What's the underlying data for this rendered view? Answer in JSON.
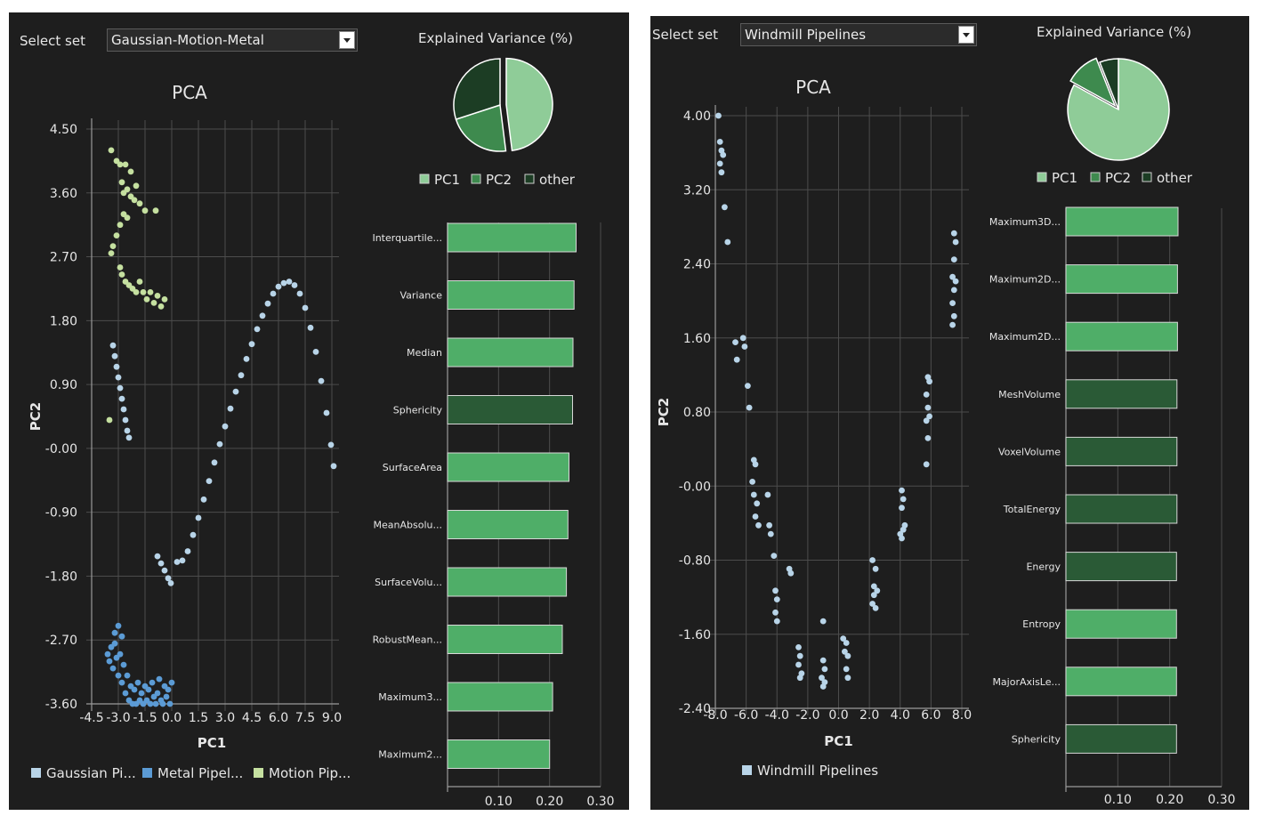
{
  "panels": [
    {
      "select_label": "Select set",
      "select_value": "Gaussian-Motion-Metal"
    },
    {
      "select_label": "Select set",
      "select_value": "Windmill Pipelines"
    }
  ],
  "chart_data": [
    {
      "type": "scatter",
      "title": "PCA",
      "xlabel": "PC1",
      "ylabel": "PC2",
      "xlim": [
        -4.5,
        9.0
      ],
      "ylim": [
        -3.6,
        4.5
      ],
      "xticks": [
        "-4.5",
        "-3.0",
        "-1.5",
        "0.0",
        "1.5",
        "3.0",
        "4.5",
        "6.0",
        "7.5",
        "9.0"
      ],
      "yticks": [
        "4.50",
        "3.60",
        "2.70",
        "1.80",
        "0.90",
        "-0.00",
        "-0.90",
        "-1.80",
        "-2.70",
        "-3.60"
      ],
      "legend": "bottom",
      "series": [
        {
          "name": "Gaussian Pi...",
          "color": "#b8d4e8",
          "points": [
            [
              -3.3,
              1.45
            ],
            [
              -3.2,
              1.3
            ],
            [
              -3.1,
              1.15
            ],
            [
              -3.0,
              1.0
            ],
            [
              -2.9,
              0.85
            ],
            [
              -2.8,
              0.7
            ],
            [
              -2.7,
              0.55
            ],
            [
              -2.6,
              0.4
            ],
            [
              -2.5,
              0.25
            ],
            [
              -2.4,
              0.15
            ],
            [
              -0.8,
              -1.52
            ],
            [
              -0.6,
              -1.62
            ],
            [
              -0.4,
              -1.72
            ],
            [
              -0.2,
              -1.83
            ],
            [
              -0.05,
              -1.9
            ],
            [
              0.3,
              -1.6
            ],
            [
              0.6,
              -1.58
            ],
            [
              0.9,
              -1.45
            ],
            [
              1.2,
              -1.22
            ],
            [
              1.5,
              -0.98
            ],
            [
              1.8,
              -0.72
            ],
            [
              2.1,
              -0.46
            ],
            [
              2.4,
              -0.2
            ],
            [
              2.7,
              0.06
            ],
            [
              3.0,
              0.31
            ],
            [
              3.3,
              0.56
            ],
            [
              3.6,
              0.8
            ],
            [
              3.9,
              1.03
            ],
            [
              4.2,
              1.26
            ],
            [
              4.5,
              1.47
            ],
            [
              4.8,
              1.68
            ],
            [
              5.1,
              1.87
            ],
            [
              5.4,
              2.04
            ],
            [
              5.7,
              2.18
            ],
            [
              6.0,
              2.28
            ],
            [
              6.3,
              2.33
            ],
            [
              6.6,
              2.35
            ],
            [
              6.9,
              2.3
            ],
            [
              7.2,
              2.18
            ],
            [
              7.5,
              1.98
            ],
            [
              7.8,
              1.7
            ],
            [
              8.1,
              1.36
            ],
            [
              8.4,
              0.95
            ],
            [
              8.7,
              0.5
            ],
            [
              8.95,
              0.05
            ],
            [
              9.1,
              -0.25
            ]
          ]
        },
        {
          "name": "Metal Pipel...",
          "color": "#5b9bd5",
          "points": [
            [
              -3.6,
              -2.9
            ],
            [
              -3.5,
              -3.0
            ],
            [
              -3.4,
              -2.8
            ],
            [
              -3.3,
              -3.1
            ],
            [
              -3.2,
              -2.75
            ],
            [
              -3.1,
              -2.95
            ],
            [
              -3.0,
              -3.2
            ],
            [
              -2.9,
              -2.9
            ],
            [
              -2.8,
              -3.3
            ],
            [
              -2.7,
              -3.05
            ],
            [
              -2.6,
              -3.45
            ],
            [
              -2.5,
              -3.2
            ],
            [
              -2.4,
              -3.55
            ],
            [
              -2.3,
              -3.35
            ],
            [
              -2.2,
              -3.6
            ],
            [
              -2.1,
              -3.4
            ],
            [
              -2.0,
              -3.6
            ],
            [
              -1.9,
              -3.3
            ],
            [
              -1.8,
              -3.55
            ],
            [
              -1.7,
              -3.45
            ],
            [
              -1.6,
              -3.6
            ],
            [
              -1.5,
              -3.35
            ],
            [
              -1.4,
              -3.55
            ],
            [
              -1.3,
              -3.4
            ],
            [
              -1.2,
              -3.6
            ],
            [
              -1.1,
              -3.3
            ],
            [
              -1.0,
              -3.5
            ],
            [
              -0.9,
              -3.6
            ],
            [
              -0.8,
              -3.45
            ],
            [
              -0.7,
              -3.25
            ],
            [
              -0.6,
              -3.55
            ],
            [
              -0.5,
              -3.6
            ],
            [
              -0.4,
              -3.35
            ],
            [
              -0.3,
              -3.5
            ],
            [
              -0.2,
              -3.4
            ],
            [
              -0.1,
              -3.6
            ],
            [
              0.0,
              -3.3
            ],
            [
              -3.0,
              -2.5
            ],
            [
              -2.8,
              -2.65
            ],
            [
              -3.2,
              -2.6
            ]
          ]
        },
        {
          "name": "Motion Pip...",
          "color": "#c5e0a0",
          "points": [
            [
              -3.4,
              4.2
            ],
            [
              -3.1,
              4.05
            ],
            [
              -2.9,
              4.0
            ],
            [
              -2.6,
              4.0
            ],
            [
              -2.3,
              3.9
            ],
            [
              -2.0,
              3.7
            ],
            [
              -2.8,
              3.75
            ],
            [
              -2.7,
              3.6
            ],
            [
              -2.5,
              3.65
            ],
            [
              -2.3,
              3.55
            ],
            [
              -2.1,
              3.5
            ],
            [
              -1.8,
              3.45
            ],
            [
              -1.5,
              3.35
            ],
            [
              -2.7,
              3.3
            ],
            [
              -2.9,
              3.15
            ],
            [
              -3.1,
              3.0
            ],
            [
              -3.3,
              2.85
            ],
            [
              -3.4,
              2.75
            ],
            [
              -0.9,
              3.35
            ],
            [
              -2.5,
              3.25
            ],
            [
              -2.9,
              2.55
            ],
            [
              -2.8,
              2.45
            ],
            [
              -2.6,
              2.35
            ],
            [
              -2.4,
              2.3
            ],
            [
              -2.2,
              2.25
            ],
            [
              -2.0,
              2.2
            ],
            [
              -1.8,
              2.35
            ],
            [
              -1.6,
              2.2
            ],
            [
              -1.4,
              2.1
            ],
            [
              -1.2,
              2.2
            ],
            [
              -1.0,
              2.05
            ],
            [
              -0.8,
              2.15
            ],
            [
              -0.6,
              2.0
            ],
            [
              -0.4,
              2.1
            ],
            [
              -3.5,
              0.4
            ]
          ]
        }
      ]
    },
    {
      "type": "pie",
      "title": "Explained Variance (%)",
      "labels": [
        "PC1",
        "PC2",
        "other"
      ],
      "values": [
        48,
        22,
        30
      ],
      "colors": [
        "#8fcc98",
        "#3e8a4e",
        "#1c3d24"
      ],
      "legend": "bottom"
    },
    {
      "type": "bar",
      "orientation": "horizontal",
      "categories": [
        "Interquartile...",
        "Variance",
        "Median",
        "Sphericity",
        "SurfaceArea",
        "MeanAbsolu...",
        "SurfaceVolu...",
        "RobustMean...",
        "Maximum3...",
        "Maximum2..."
      ],
      "values": [
        0.252,
        0.248,
        0.246,
        0.245,
        0.238,
        0.236,
        0.233,
        0.225,
        0.206,
        0.2
      ],
      "colors": [
        "#4fae68",
        "#4fae68",
        "#4fae68",
        "#2a5a36",
        "#4fae68",
        "#4fae68",
        "#4fae68",
        "#4fae68",
        "#4fae68",
        "#4fae68"
      ],
      "xticks": [
        "0.10",
        "0.20",
        "0.30"
      ],
      "xlim": [
        0.0,
        0.3
      ]
    },
    {
      "type": "scatter",
      "title": "PCA",
      "xlabel": "PC1",
      "ylabel": "PC2",
      "xlim": [
        -8.0,
        8.0
      ],
      "ylim": [
        -2.4,
        4.4
      ],
      "xticks": [
        "-8.0",
        "-6.0",
        "-4.0",
        "-2.0",
        "0.0",
        "2.0",
        "4.0",
        "6.0",
        "8.0"
      ],
      "yticks": [
        "4.00",
        "3.20",
        "2.40",
        "1.60",
        "0.80",
        "-0.00",
        "-0.80",
        "-1.60",
        "-2.40"
      ],
      "legend": "bottom",
      "series": [
        {
          "name": "Windmill Pipelines",
          "color": "#b8d4e8",
          "points": [
            [
              -7.8,
              4.4
            ],
            [
              -7.7,
              4.1
            ],
            [
              -7.6,
              4.0
            ],
            [
              -7.5,
              3.95
            ],
            [
              -7.7,
              3.85
            ],
            [
              -7.6,
              3.75
            ],
            [
              -7.4,
              3.35
            ],
            [
              -7.2,
              2.95
            ],
            [
              -6.7,
              1.8
            ],
            [
              -6.2,
              1.85
            ],
            [
              -6.1,
              1.75
            ],
            [
              -6.6,
              1.6
            ],
            [
              -5.9,
              1.3
            ],
            [
              -5.8,
              1.05
            ],
            [
              -5.5,
              0.45
            ],
            [
              -5.4,
              0.4
            ],
            [
              -5.6,
              0.2
            ],
            [
              -5.5,
              0.05
            ],
            [
              -5.3,
              -0.05
            ],
            [
              -5.4,
              -0.2
            ],
            [
              -5.2,
              -0.3
            ],
            [
              -4.6,
              0.05
            ],
            [
              -4.5,
              -0.3
            ],
            [
              -4.4,
              -0.4
            ],
            [
              -4.2,
              -0.65
            ],
            [
              -4.1,
              -1.05
            ],
            [
              -4.0,
              -1.15
            ],
            [
              -4.1,
              -1.3
            ],
            [
              -4.0,
              -1.4
            ],
            [
              -3.2,
              -0.8
            ],
            [
              -3.1,
              -0.85
            ],
            [
              -2.6,
              -1.7
            ],
            [
              -2.5,
              -1.8
            ],
            [
              -2.6,
              -1.9
            ],
            [
              -2.4,
              -2.0
            ],
            [
              -2.5,
              -2.05
            ],
            [
              -1.0,
              -1.4
            ],
            [
              -1.0,
              -1.85
            ],
            [
              -0.9,
              -1.95
            ],
            [
              -1.1,
              -2.05
            ],
            [
              -0.9,
              -2.1
            ],
            [
              -1.0,
              -2.15
            ],
            [
              0.3,
              -1.6
            ],
            [
              0.5,
              -1.65
            ],
            [
              0.4,
              -1.75
            ],
            [
              0.6,
              -1.8
            ],
            [
              0.5,
              -1.95
            ],
            [
              0.6,
              -2.05
            ],
            [
              2.2,
              -0.7
            ],
            [
              2.4,
              -0.8
            ],
            [
              2.3,
              -1.0
            ],
            [
              2.5,
              -1.05
            ],
            [
              2.3,
              -1.1
            ],
            [
              2.2,
              -1.2
            ],
            [
              2.4,
              -1.25
            ],
            [
              4.1,
              0.1
            ],
            [
              4.2,
              0.0
            ],
            [
              4.1,
              -0.1
            ],
            [
              4.3,
              -0.3
            ],
            [
              4.2,
              -0.35
            ],
            [
              4.0,
              -0.4
            ],
            [
              4.1,
              -0.45
            ],
            [
              5.8,
              1.4
            ],
            [
              5.9,
              1.35
            ],
            [
              5.7,
              1.2
            ],
            [
              5.8,
              1.05
            ],
            [
              5.9,
              0.95
            ],
            [
              5.7,
              0.9
            ],
            [
              5.8,
              0.7
            ],
            [
              5.7,
              0.4
            ],
            [
              7.5,
              3.05
            ],
            [
              7.6,
              2.95
            ],
            [
              7.5,
              2.75
            ],
            [
              7.4,
              2.55
            ],
            [
              7.6,
              2.5
            ],
            [
              7.5,
              2.4
            ],
            [
              7.4,
              2.25
            ],
            [
              7.5,
              2.1
            ],
            [
              7.4,
              2.0
            ]
          ]
        }
      ]
    },
    {
      "type": "pie",
      "title": "Explained Variance (%)",
      "labels": [
        "PC1",
        "PC2",
        "other"
      ],
      "values": [
        83,
        11,
        6
      ],
      "colors": [
        "#8fcc98",
        "#3e8a4e",
        "#1c3d24"
      ],
      "legend": "bottom"
    },
    {
      "type": "bar",
      "orientation": "horizontal",
      "categories": [
        "Maximum3D...",
        "Maximum2D...",
        "Maximum2D...",
        "MeshVolume",
        "VoxelVolume",
        "TotalEnergy",
        "Energy",
        "Entropy",
        "MajorAxisLe...",
        "Sphericity"
      ],
      "values": [
        0.216,
        0.215,
        0.215,
        0.214,
        0.214,
        0.214,
        0.213,
        0.213,
        0.213,
        0.213
      ],
      "colors": [
        "#4fae68",
        "#4fae68",
        "#4fae68",
        "#2a5a36",
        "#2a5a36",
        "#2a5a36",
        "#2a5a36",
        "#4fae68",
        "#4fae68",
        "#2a5a36"
      ],
      "xticks": [
        "0.10",
        "0.20",
        "0.30"
      ],
      "xlim": [
        0.0,
        0.3
      ]
    }
  ]
}
